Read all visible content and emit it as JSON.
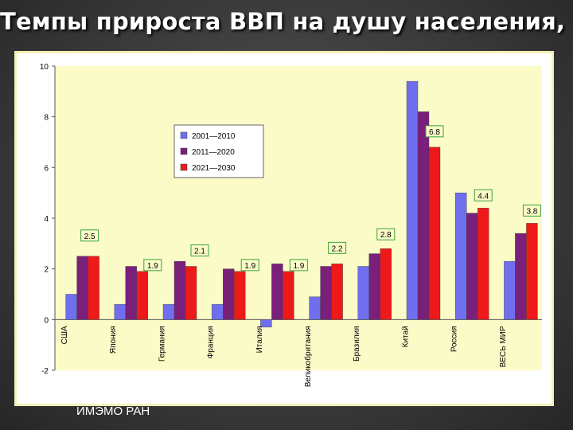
{
  "slide": {
    "title": "Темпы прироста ВВП на душу населения, %",
    "source": "ИМЭМО РАН"
  },
  "chart_data": {
    "type": "bar",
    "title": "",
    "xlabel": "",
    "ylabel": "",
    "ylim": [
      -2,
      10
    ],
    "yticks": [
      -2,
      0,
      2,
      4,
      6,
      8,
      10
    ],
    "grid": false,
    "legend_position": "top-left inside plot",
    "categories": [
      "США",
      "Япония",
      "Германия",
      "Франция",
      "Италия",
      "Великобритания",
      "Бразилия",
      "Китай",
      "Россия",
      "ВЕСЬ МИР"
    ],
    "series": [
      {
        "name": "2001—2010",
        "color": "#6f6fee",
        "values": [
          1.0,
          0.6,
          0.6,
          0.6,
          -0.3,
          0.9,
          2.1,
          9.4,
          5.0,
          2.3
        ]
      },
      {
        "name": "2011—2020",
        "color": "#7a1f7a",
        "values": [
          2.5,
          2.1,
          2.3,
          2.0,
          2.2,
          2.1,
          2.6,
          8.2,
          4.2,
          3.4
        ]
      },
      {
        "name": "2021—2030",
        "color": "#ee1a1a",
        "values": [
          2.5,
          1.9,
          2.1,
          1.9,
          1.9,
          2.2,
          2.8,
          6.8,
          4.4,
          3.8
        ]
      }
    ],
    "data_labels": [
      {
        "category": "США",
        "text": "2.5"
      },
      {
        "category": "Япония",
        "text": "1.9"
      },
      {
        "category": "Германия",
        "text": "2.1"
      },
      {
        "category": "Франция",
        "text": "1.9"
      },
      {
        "category": "Италия",
        "text": "1.9"
      },
      {
        "category": "Великобритания",
        "text": "2.2"
      },
      {
        "category": "Бразилия",
        "text": "2.8"
      },
      {
        "category": "Китай",
        "text": "6.8"
      },
      {
        "category": "Россия",
        "text": "4.4"
      },
      {
        "category": "ВЕСЬ МИР",
        "text": "3.8"
      }
    ],
    "plot_background": "#fbfbc8",
    "label_box_fill": "#fbfbc8",
    "label_box_border": "#3aa23a"
  }
}
